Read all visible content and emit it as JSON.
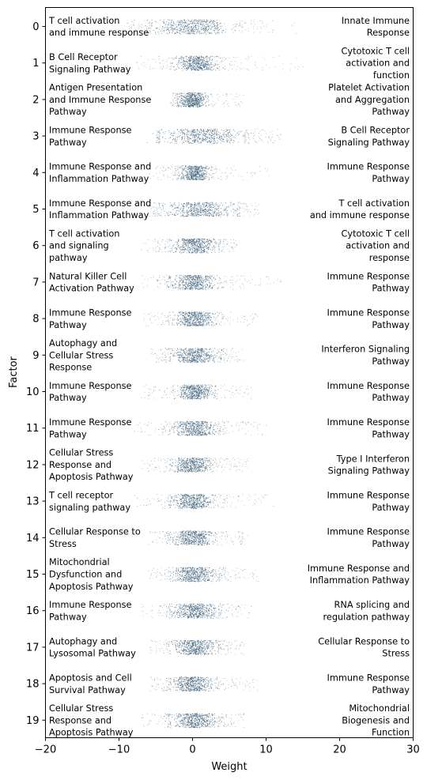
{
  "chart_data": {
    "type": "scatter",
    "title": "",
    "xlabel": "Weight",
    "ylabel": "Factor",
    "xlim": [
      -20,
      30
    ],
    "x_ticks": [
      -20,
      -10,
      0,
      10,
      20,
      30
    ],
    "x_tick_labels": [
      "−20",
      "−10",
      "0",
      "10",
      "20",
      "30"
    ],
    "y_categories": [
      "0",
      "1",
      "2",
      "3",
      "4",
      "5",
      "6",
      "7",
      "8",
      "9",
      "10",
      "11",
      "12",
      "13",
      "14",
      "15",
      "16",
      "17",
      "18",
      "19"
    ],
    "point_color": "#3b5f7a",
    "grid": false,
    "factors": [
      {
        "factor": "0",
        "left_label": [
          "T cell activation",
          "and immune response"
        ],
        "right_label": [
          "Innate Immune",
          "Response"
        ],
        "spread": [
          -5.5,
          5.5
        ],
        "tail": [
          -9,
          14
        ]
      },
      {
        "factor": "1",
        "left_label": [
          "B Cell Receptor",
          "Signaling Pathway"
        ],
        "right_label": [
          "Cytotoxic T cell",
          "activation and",
          "function"
        ],
        "spread": [
          -2.5,
          3.5
        ],
        "tail": [
          -8,
          15
        ]
      },
      {
        "factor": "2",
        "left_label": [
          "Antigen Presentation",
          "and Immune Response",
          "Pathway"
        ],
        "right_label": [
          "Platelet Activation",
          "and Aggregation",
          "Pathway"
        ],
        "spread": [
          -2,
          2
        ],
        "tail": [
          -3,
          7
        ]
      },
      {
        "factor": "3",
        "left_label": [
          "Immune Response",
          "Pathway"
        ],
        "right_label": [
          "B Cell Receptor",
          "Signaling Pathway"
        ],
        "spread": [
          -4.5,
          7
        ],
        "tail": [
          -5,
          12
        ]
      },
      {
        "factor": "4",
        "left_label": [
          "Immune Response and",
          "Inflammation Pathway"
        ],
        "right_label": [
          "Immune Response",
          "Pathway"
        ],
        "spread": [
          -2,
          2.5
        ],
        "tail": [
          -6,
          11
        ]
      },
      {
        "factor": "5",
        "left_label": [
          "Immune Response and",
          "Inflammation Pathway"
        ],
        "right_label": [
          "T cell activation",
          "and immune response"
        ],
        "spread": [
          -4,
          6
        ],
        "tail": [
          -6,
          9
        ]
      },
      {
        "factor": "6",
        "left_label": [
          "T cell activation",
          "and signaling",
          "pathway"
        ],
        "right_label": [
          "Cytotoxic T cell",
          "activation and",
          "response"
        ],
        "spread": [
          -3,
          3.5
        ],
        "tail": [
          -7,
          6
        ]
      },
      {
        "factor": "7",
        "left_label": [
          "Natural Killer Cell",
          "Activation Pathway"
        ],
        "right_label": [
          "Immune Response",
          "Pathway"
        ],
        "spread": [
          -3,
          3.5
        ],
        "tail": [
          -7,
          12
        ]
      },
      {
        "factor": "8",
        "left_label": [
          "Immune Response",
          "Pathway"
        ],
        "right_label": [
          "Immune Response",
          "Pathway"
        ],
        "spread": [
          -2.5,
          3
        ],
        "tail": [
          -7,
          9
        ]
      },
      {
        "factor": "9",
        "left_label": [
          "Autophagy and",
          "Cellular Stress",
          "Response"
        ],
        "right_label": [
          "Interferon Signaling",
          "Pathway"
        ],
        "spread": [
          -3,
          3.5
        ],
        "tail": [
          -6,
          7
        ]
      },
      {
        "factor": "10",
        "left_label": [
          "Immune Response",
          "Pathway"
        ],
        "right_label": [
          "Immune Response",
          "Pathway"
        ],
        "spread": [
          -2.5,
          3
        ],
        "tail": [
          -7,
          8
        ]
      },
      {
        "factor": "11",
        "left_label": [
          "Immune Response",
          "Pathway"
        ],
        "right_label": [
          "Immune Response",
          "Pathway"
        ],
        "spread": [
          -3,
          3.5
        ],
        "tail": [
          -8,
          10
        ]
      },
      {
        "factor": "12",
        "left_label": [
          "Cellular Stress",
          "Response and",
          "Apoptosis Pathway"
        ],
        "right_label": [
          "Type I Interferon",
          "Signaling Pathway"
        ],
        "spread": [
          -3,
          3
        ],
        "tail": [
          -7,
          8
        ]
      },
      {
        "factor": "13",
        "left_label": [
          "T cell receptor",
          "signaling pathway"
        ],
        "right_label": [
          "Immune Response",
          "Pathway"
        ],
        "spread": [
          -3,
          3
        ],
        "tail": [
          -8,
          11
        ]
      },
      {
        "factor": "14",
        "left_label": [
          "Cellular Response to",
          "Stress"
        ],
        "right_label": [
          "Immune Response",
          "Pathway"
        ],
        "spread": [
          -3,
          3
        ],
        "tail": [
          -6,
          8
        ]
      },
      {
        "factor": "15",
        "left_label": [
          "Mitochondrial",
          "Dysfunction and",
          "Apoptosis Pathway"
        ],
        "right_label": [
          "Immune Response and",
          "Inflammation Pathway"
        ],
        "spread": [
          -3,
          3.5
        ],
        "tail": [
          -6,
          9
        ]
      },
      {
        "factor": "16",
        "left_label": [
          "Immune Response",
          "Pathway"
        ],
        "right_label": [
          "RNA splicing and",
          "regulation pathway"
        ],
        "spread": [
          -3,
          3.5
        ],
        "tail": [
          -7,
          8
        ]
      },
      {
        "factor": "17",
        "left_label": [
          "Autophagy and",
          "Lysosomal Pathway"
        ],
        "right_label": [
          "Cellular Response to",
          "Stress"
        ],
        "spread": [
          -3,
          3.5
        ],
        "tail": [
          -6,
          7
        ]
      },
      {
        "factor": "18",
        "left_label": [
          "Apoptosis and Cell",
          "Survival Pathway"
        ],
        "right_label": [
          "Immune Response",
          "Pathway"
        ],
        "spread": [
          -3,
          3
        ],
        "tail": [
          -6,
          9
        ]
      },
      {
        "factor": "19",
        "left_label": [
          "Cellular Stress",
          "Response and",
          "Apoptosis Pathway"
        ],
        "right_label": [
          "Mitochondrial",
          "Biogenesis and",
          "Function"
        ],
        "spread": [
          -3,
          3.5
        ],
        "tail": [
          -7,
          7
        ]
      }
    ]
  }
}
